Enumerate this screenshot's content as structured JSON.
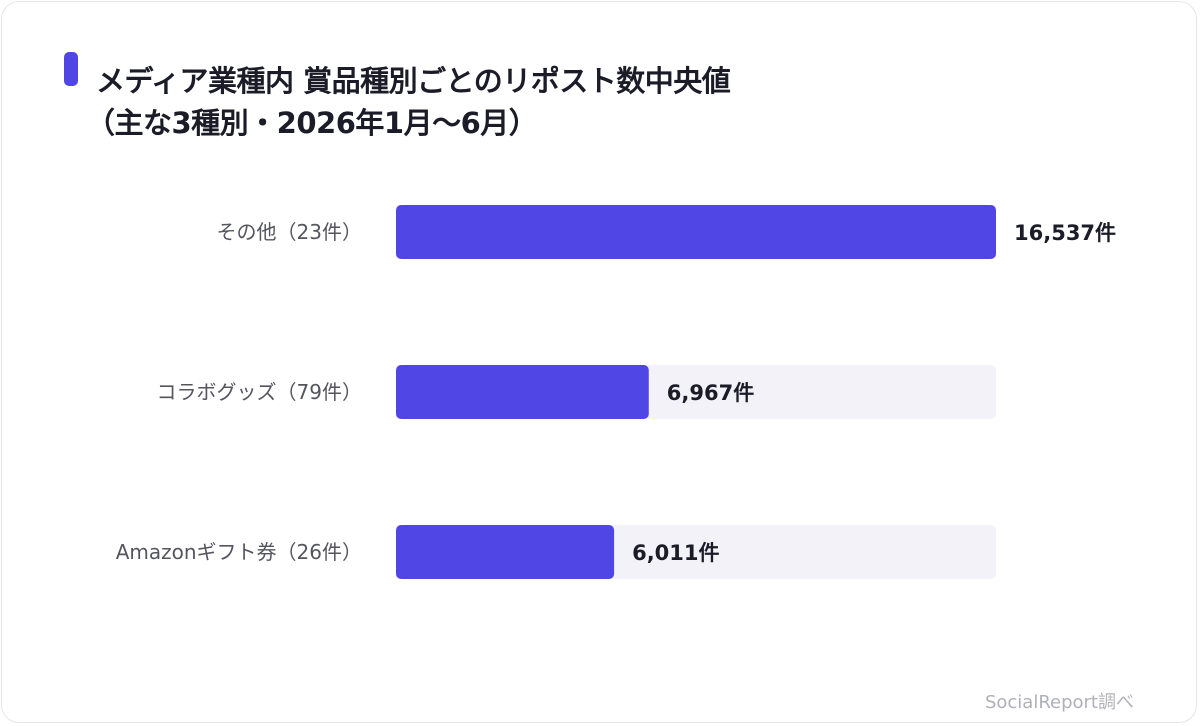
{
  "title": {
    "line1": "メディア業種内 賞品種別ごとのリポスト数中央値",
    "line2": "（主な3種別・2026年1月〜6月）"
  },
  "colors": {
    "bar": "#5046e5",
    "track": "#f3f2f8",
    "marker": "#5046e5"
  },
  "chart_data": {
    "type": "bar",
    "orientation": "horizontal",
    "categories": [
      "その他（23件）",
      "コラボグッズ（79件）",
      "Amazonギフト券（26件）"
    ],
    "values": [
      16537,
      6967,
      6011
    ],
    "value_labels": [
      "16,537件",
      "6,967件",
      "6,011件"
    ],
    "xlim": [
      0,
      16537
    ],
    "grid": false,
    "legend": "none"
  },
  "source": "SocialReport調べ"
}
